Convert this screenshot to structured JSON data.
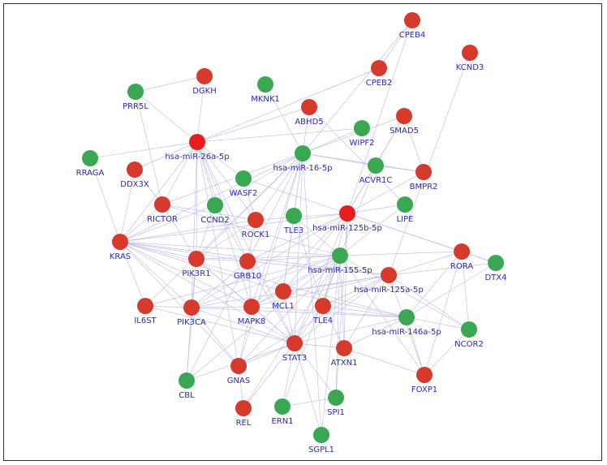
{
  "colors": {
    "red": "#d53a2c",
    "bright_red": "#e81d1d",
    "green": "#3aa853",
    "label": "#2b2bb0",
    "edge": "#b9b9e6"
  },
  "nodes": [
    {
      "id": "CPEB4",
      "label": "CPEB4",
      "color": "red"
    },
    {
      "id": "KCND3",
      "label": "KCND3",
      "color": "red"
    },
    {
      "id": "CPEB2",
      "label": "CPEB2",
      "color": "red"
    },
    {
      "id": "DGKH",
      "label": "DGKH",
      "color": "red"
    },
    {
      "id": "PRR5L",
      "label": "PRR5L",
      "color": "green"
    },
    {
      "id": "MKNK1",
      "label": "MKNK1",
      "color": "green"
    },
    {
      "id": "ABHD5",
      "label": "ABHD5",
      "color": "red"
    },
    {
      "id": "SMAD5",
      "label": "SMAD5",
      "color": "red"
    },
    {
      "id": "WIPF2",
      "label": "WIPF2",
      "color": "green"
    },
    {
      "id": "hsa-miR-26a-5p",
      "label": "hsa-miR-26a-5p",
      "color": "bright_red"
    },
    {
      "id": "hsa-miR-16-5p",
      "label": "hsa-miR-16-5p",
      "color": "green"
    },
    {
      "id": "RRAGA",
      "label": "RRAGA",
      "color": "green"
    },
    {
      "id": "DDX3X",
      "label": "DDX3X",
      "color": "red"
    },
    {
      "id": "ACVR1C",
      "label": "ACVR1C",
      "color": "green"
    },
    {
      "id": "BMPR2",
      "label": "BMPR2",
      "color": "red"
    },
    {
      "id": "WASF2",
      "label": "WASF2",
      "color": "green"
    },
    {
      "id": "RICTOR",
      "label": "RICTOR",
      "color": "red"
    },
    {
      "id": "CCND2",
      "label": "CCND2",
      "color": "green"
    },
    {
      "id": "LIPE",
      "label": "LIPE",
      "color": "green"
    },
    {
      "id": "ROCK1",
      "label": "ROCK1",
      "color": "red"
    },
    {
      "id": "TLE3",
      "label": "TLE3",
      "color": "green"
    },
    {
      "id": "hsa-miR-125b-5p",
      "label": "hsa-miR-125b-5p",
      "color": "bright_red"
    },
    {
      "id": "KRAS",
      "label": "KRAS",
      "color": "red"
    },
    {
      "id": "PIK3R1",
      "label": "PIK3R1",
      "color": "red"
    },
    {
      "id": "GRB10",
      "label": "GRB10",
      "color": "red"
    },
    {
      "id": "hsa-miR-155-5p",
      "label": "hsa-miR-155-5p",
      "color": "green"
    },
    {
      "id": "RORA",
      "label": "RORA",
      "color": "red"
    },
    {
      "id": "DTX4",
      "label": "DTX4",
      "color": "green"
    },
    {
      "id": "hsa-miR-125a-5p",
      "label": "hsa-miR-125a-5p",
      "color": "red"
    },
    {
      "id": "MCL1",
      "label": "MCL1",
      "color": "red"
    },
    {
      "id": "IL6ST",
      "label": "IL6ST",
      "color": "red"
    },
    {
      "id": "PIK3CA",
      "label": "PIK3CA",
      "color": "red"
    },
    {
      "id": "MAPK8",
      "label": "MAPK8",
      "color": "red"
    },
    {
      "id": "TLE4",
      "label": "TLE4",
      "color": "red"
    },
    {
      "id": "hsa-miR-146a-5p",
      "label": "hsa-miR-146a-5p",
      "color": "green"
    },
    {
      "id": "NCOR2",
      "label": "NCOR2",
      "color": "green"
    },
    {
      "id": "STAT3",
      "label": "STAT3",
      "color": "red"
    },
    {
      "id": "ATXN1",
      "label": "ATXN1",
      "color": "red"
    },
    {
      "id": "GNAS",
      "label": "GNAS",
      "color": "red"
    },
    {
      "id": "CBL",
      "label": "CBL",
      "color": "green"
    },
    {
      "id": "FOXP1",
      "label": "FOXP1",
      "color": "red"
    },
    {
      "id": "REL",
      "label": "REL",
      "color": "red"
    },
    {
      "id": "ERN1",
      "label": "ERN1",
      "color": "green"
    },
    {
      "id": "SPI1",
      "label": "SPI1",
      "color": "green"
    },
    {
      "id": "SGPL1",
      "label": "SGPL1",
      "color": "green"
    }
  ],
  "edges": [
    [
      "hsa-miR-26a-5p",
      "PRR5L"
    ],
    [
      "hsa-miR-26a-5p",
      "DGKH"
    ],
    [
      "hsa-miR-26a-5p",
      "DDX3X"
    ],
    [
      "hsa-miR-26a-5p",
      "RRAGA"
    ],
    [
      "hsa-miR-26a-5p",
      "RICTOR"
    ],
    [
      "hsa-miR-26a-5p",
      "KRAS"
    ],
    [
      "hsa-miR-26a-5p",
      "PIK3R1"
    ],
    [
      "hsa-miR-26a-5p",
      "PIK3CA"
    ],
    [
      "hsa-miR-26a-5p",
      "MAPK8"
    ],
    [
      "hsa-miR-26a-5p",
      "STAT3"
    ],
    [
      "hsa-miR-26a-5p",
      "GNAS"
    ],
    [
      "hsa-miR-26a-5p",
      "WASF2"
    ],
    [
      "hsa-miR-26a-5p",
      "ABHD5"
    ],
    [
      "hsa-miR-26a-5p",
      "CCND2"
    ],
    [
      "hsa-miR-26a-5p",
      "ROCK1"
    ],
    [
      "hsa-miR-26a-5p",
      "WIPF2"
    ],
    [
      "hsa-miR-26a-5p",
      "CPEB2"
    ],
    [
      "hsa-miR-26a-5p",
      "GRB10"
    ],
    [
      "hsa-miR-16-5p",
      "MKNK1"
    ],
    [
      "hsa-miR-16-5p",
      "CPEB4"
    ],
    [
      "hsa-miR-16-5p",
      "WIPF2"
    ],
    [
      "hsa-miR-16-5p",
      "ABHD5"
    ],
    [
      "hsa-miR-16-5p",
      "CCND2"
    ],
    [
      "hsa-miR-16-5p",
      "KRAS"
    ],
    [
      "hsa-miR-16-5p",
      "RICTOR"
    ],
    [
      "hsa-miR-16-5p",
      "PIK3R1"
    ],
    [
      "hsa-miR-16-5p",
      "MAPK8"
    ],
    [
      "hsa-miR-16-5p",
      "MCL1"
    ],
    [
      "hsa-miR-16-5p",
      "STAT3"
    ],
    [
      "hsa-miR-16-5p",
      "ACVR1C"
    ],
    [
      "hsa-miR-16-5p",
      "BMPR2"
    ],
    [
      "hsa-miR-16-5p",
      "SMAD5"
    ],
    [
      "hsa-miR-16-5p",
      "GNAS"
    ],
    [
      "hsa-miR-16-5p",
      "IL6ST"
    ],
    [
      "hsa-miR-16-5p",
      "CBL"
    ],
    [
      "hsa-miR-16-5p",
      "ROCK1"
    ],
    [
      "hsa-miR-16-5p",
      "SGPL1"
    ],
    [
      "hsa-miR-16-5p",
      "TLE3"
    ],
    [
      "hsa-miR-125b-5p",
      "CPEB4"
    ],
    [
      "hsa-miR-125b-5p",
      "LIPE"
    ],
    [
      "hsa-miR-125b-5p",
      "ACVR1C"
    ],
    [
      "hsa-miR-125b-5p",
      "SMAD5"
    ],
    [
      "hsa-miR-125b-5p",
      "BMPR2"
    ],
    [
      "hsa-miR-125b-5p",
      "KRAS"
    ],
    [
      "hsa-miR-125b-5p",
      "MCL1"
    ],
    [
      "hsa-miR-125b-5p",
      "STAT3"
    ],
    [
      "hsa-miR-125b-5p",
      "ATXN1"
    ],
    [
      "hsa-miR-125b-5p",
      "RORA"
    ],
    [
      "hsa-miR-125b-5p",
      "DTX4"
    ],
    [
      "hsa-miR-125b-5p",
      "TLE4"
    ],
    [
      "hsa-miR-125b-5p",
      "GRB10"
    ],
    [
      "hsa-miR-125b-5p",
      "PIK3CA"
    ],
    [
      "hsa-miR-125b-5p",
      "MAPK8"
    ],
    [
      "hsa-miR-125b-5p",
      "SPI1"
    ],
    [
      "hsa-miR-125b-5p",
      "ROCK1"
    ],
    [
      "hsa-miR-125b-5p",
      "WASF2"
    ],
    [
      "hsa-miR-155-5p",
      "KRAS"
    ],
    [
      "hsa-miR-155-5p",
      "PIK3R1"
    ],
    [
      "hsa-miR-155-5p",
      "PIK3CA"
    ],
    [
      "hsa-miR-155-5p",
      "MAPK8"
    ],
    [
      "hsa-miR-155-5p",
      "STAT3"
    ],
    [
      "hsa-miR-155-5p",
      "GNAS"
    ],
    [
      "hsa-miR-155-5p",
      "REL"
    ],
    [
      "hsa-miR-155-5p",
      "SPI1"
    ],
    [
      "hsa-miR-155-5p",
      "ERN1"
    ],
    [
      "hsa-miR-155-5p",
      "TLE4"
    ],
    [
      "hsa-miR-155-5p",
      "ATXN1"
    ],
    [
      "hsa-miR-155-5p",
      "RORA"
    ],
    [
      "hsa-miR-155-5p",
      "NCOR2"
    ],
    [
      "hsa-miR-155-5p",
      "FOXP1"
    ],
    [
      "hsa-miR-155-5p",
      "LIPE"
    ],
    [
      "hsa-miR-155-5p",
      "ACVR1C"
    ],
    [
      "hsa-miR-155-5p",
      "MCL1"
    ],
    [
      "hsa-miR-155-5p",
      "GRB10"
    ],
    [
      "hsa-miR-155-5p",
      "TLE3"
    ],
    [
      "hsa-miR-155-5p",
      "IL6ST"
    ],
    [
      "hsa-miR-155-5p",
      "CBL"
    ],
    [
      "hsa-miR-155-5p",
      "SGPL1"
    ],
    [
      "hsa-miR-155-5p",
      "RICTOR"
    ],
    [
      "hsa-miR-125a-5p",
      "KRAS"
    ],
    [
      "hsa-miR-125a-5p",
      "RORA"
    ],
    [
      "hsa-miR-125a-5p",
      "DTX4"
    ],
    [
      "hsa-miR-125a-5p",
      "STAT3"
    ],
    [
      "hsa-miR-125a-5p",
      "ATXN1"
    ],
    [
      "hsa-miR-125a-5p",
      "MCL1"
    ],
    [
      "hsa-miR-125a-5p",
      "PIK3CA"
    ],
    [
      "hsa-miR-125a-5p",
      "FOXP1"
    ],
    [
      "hsa-miR-125a-5p",
      "NCOR2"
    ],
    [
      "hsa-miR-125a-5p",
      "TLE4"
    ],
    [
      "hsa-miR-125a-5p",
      "KCND3"
    ],
    [
      "hsa-miR-125a-5p",
      "GRB10"
    ],
    [
      "hsa-miR-125a-5p",
      "MAPK8"
    ],
    [
      "hsa-miR-125a-5p",
      "GNAS"
    ],
    [
      "hsa-miR-146a-5p",
      "RORA"
    ],
    [
      "hsa-miR-146a-5p",
      "NCOR2"
    ],
    [
      "hsa-miR-146a-5p",
      "DTX4"
    ],
    [
      "hsa-miR-146a-5p",
      "STAT3"
    ],
    [
      "hsa-miR-146a-5p",
      "ATXN1"
    ],
    [
      "hsa-miR-146a-5p",
      "FOXP1"
    ],
    [
      "hsa-miR-146a-5p",
      "MCL1"
    ],
    [
      "hsa-miR-146a-5p",
      "KRAS"
    ],
    [
      "hsa-miR-146a-5p",
      "PIK3CA"
    ],
    [
      "hsa-miR-146a-5p",
      "TLE4"
    ],
    [
      "hsa-miR-146a-5p",
      "MAPK8"
    ],
    [
      "KRAS",
      "RICTOR"
    ],
    [
      "KRAS",
      "PIK3R1"
    ],
    [
      "KRAS",
      "PIK3CA"
    ],
    [
      "KRAS",
      "MAPK8"
    ],
    [
      "KRAS",
      "STAT3"
    ],
    [
      "KRAS",
      "GRB10"
    ],
    [
      "KRAS",
      "MCL1"
    ],
    [
      "KRAS",
      "IL6ST"
    ],
    [
      "KRAS",
      "CCND2"
    ],
    [
      "KRAS",
      "ROCK1"
    ],
    [
      "KRAS",
      "GNAS"
    ],
    [
      "PIK3R1",
      "PIK3CA"
    ],
    [
      "PIK3R1",
      "STAT3"
    ],
    [
      "PIK3R1",
      "GRB10"
    ],
    [
      "PIK3R1",
      "MAPK8"
    ],
    [
      "PIK3R1",
      "CBL"
    ],
    [
      "PIK3CA",
      "STAT3"
    ],
    [
      "PIK3CA",
      "MAPK8"
    ],
    [
      "PIK3CA",
      "IL6ST"
    ],
    [
      "PIK3CA",
      "CBL"
    ],
    [
      "PIK3CA",
      "GNAS"
    ],
    [
      "PIK3CA",
      "GRB10"
    ],
    [
      "STAT3",
      "MAPK8"
    ],
    [
      "STAT3",
      "MCL1"
    ],
    [
      "STAT3",
      "GNAS"
    ],
    [
      "STAT3",
      "REL"
    ],
    [
      "STAT3",
      "ERN1"
    ],
    [
      "STAT3",
      "SPI1"
    ],
    [
      "STAT3",
      "ATXN1"
    ],
    [
      "STAT3",
      "TLE4"
    ],
    [
      "STAT3",
      "GRB10"
    ],
    [
      "STAT3",
      "IL6ST"
    ],
    [
      "STAT3",
      "CBL"
    ],
    [
      "STAT3",
      "SGPL1"
    ],
    [
      "MAPK8",
      "MCL1"
    ],
    [
      "MAPK8",
      "GRB10"
    ],
    [
      "MAPK8",
      "GNAS"
    ],
    [
      "RICTOR",
      "PIK3R1"
    ],
    [
      "RICTOR",
      "DDX3X"
    ],
    [
      "RICTOR",
      "ROCK1"
    ],
    [
      "DDX3X",
      "KRAS"
    ],
    [
      "ROCK1",
      "GRB10"
    ],
    [
      "ROCK1",
      "PIK3R1"
    ],
    [
      "CCND2",
      "PIK3R1"
    ],
    [
      "CCND2",
      "GRB10"
    ],
    [
      "WASF2",
      "ROCK1"
    ],
    [
      "TLE3",
      "TLE4"
    ],
    [
      "TLE3",
      "MCL1"
    ],
    [
      "ATXN1",
      "FOXP1"
    ],
    [
      "ATXN1",
      "TLE4"
    ],
    [
      "RORA",
      "NCOR2"
    ],
    [
      "RORA",
      "DTX4"
    ],
    [
      "RORA",
      "FOXP1"
    ],
    [
      "NCOR2",
      "FOXP1"
    ],
    [
      "BMPR2",
      "ACVR1C"
    ],
    [
      "SMAD5",
      "ACVR1C"
    ],
    [
      "SMAD5",
      "BMPR2"
    ],
    [
      "LIPE",
      "ABHD5"
    ],
    [
      "CPEB4",
      "CPEB2"
    ],
    [
      "REL",
      "GNAS"
    ],
    [
      "SPI1",
      "ERN1"
    ],
    [
      "DGKH",
      "PRR5L"
    ],
    [
      "PRR5L",
      "RICTOR"
    ],
    [
      "RRAGA",
      "KRAS"
    ]
  ]
}
